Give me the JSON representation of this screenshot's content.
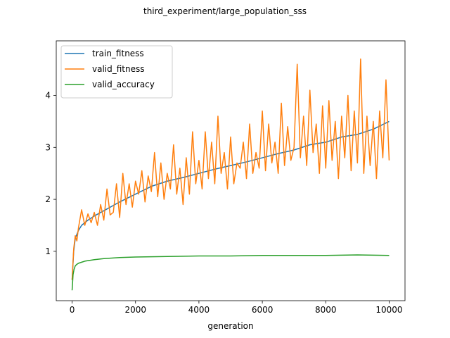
{
  "chart_data": {
    "type": "line",
    "title": "third_experiment/large_population_sss",
    "xlabel": "generation",
    "ylabel": "",
    "xlim": [
      -500,
      10500
    ],
    "ylim": [
      0.05,
      5.05
    ],
    "x_ticks": [
      0,
      2000,
      4000,
      6000,
      8000,
      10000
    ],
    "y_ticks": [
      1,
      2,
      3,
      4
    ],
    "grid": false,
    "legend_position": "upper-left",
    "series": [
      {
        "name": "train_fitness",
        "color": "#1f77b4",
        "x": [
          0,
          50,
          100,
          200,
          300,
          500,
          700,
          1000,
          1500,
          2000,
          2500,
          3000,
          3500,
          4000,
          4500,
          5000,
          5500,
          6000,
          6500,
          7000,
          7500,
          8000,
          8500,
          9000,
          9500,
          10000
        ],
        "y": [
          0.45,
          1.0,
          1.25,
          1.4,
          1.5,
          1.6,
          1.68,
          1.78,
          1.95,
          2.1,
          2.25,
          2.35,
          2.42,
          2.5,
          2.58,
          2.65,
          2.72,
          2.8,
          2.88,
          2.95,
          3.05,
          3.1,
          3.2,
          3.25,
          3.35,
          3.5
        ]
      },
      {
        "name": "valid_fitness",
        "color": "#ff7f0e",
        "x": [
          0,
          50,
          100,
          150,
          200,
          300,
          400,
          500,
          600,
          700,
          800,
          900,
          1000,
          1100,
          1200,
          1300,
          1400,
          1500,
          1600,
          1700,
          1800,
          1900,
          2000,
          2100,
          2200,
          2300,
          2400,
          2500,
          2600,
          2700,
          2800,
          2900,
          3000,
          3100,
          3200,
          3300,
          3400,
          3500,
          3600,
          3700,
          3800,
          3900,
          4000,
          4100,
          4200,
          4300,
          4400,
          4500,
          4600,
          4700,
          4800,
          4900,
          5000,
          5100,
          5200,
          5300,
          5400,
          5500,
          5600,
          5700,
          5800,
          5900,
          6000,
          6100,
          6200,
          6300,
          6400,
          6500,
          6600,
          6700,
          6800,
          6900,
          7000,
          7100,
          7200,
          7300,
          7400,
          7500,
          7600,
          7700,
          7800,
          7900,
          8000,
          8100,
          8200,
          8300,
          8400,
          8500,
          8600,
          8700,
          8800,
          8900,
          9000,
          9100,
          9200,
          9300,
          9400,
          9500,
          9600,
          9700,
          9800,
          9900,
          10000
        ],
        "y": [
          0.45,
          1.05,
          1.3,
          1.2,
          1.45,
          1.8,
          1.5,
          1.72,
          1.55,
          1.75,
          1.5,
          1.9,
          1.6,
          2.2,
          1.7,
          1.75,
          2.3,
          1.65,
          2.5,
          1.9,
          2.3,
          1.85,
          2.35,
          2.1,
          2.55,
          1.95,
          2.45,
          2.15,
          2.9,
          2.05,
          2.7,
          2.0,
          2.5,
          2.2,
          3.05,
          2.1,
          2.6,
          1.9,
          2.8,
          2.1,
          3.3,
          2.3,
          2.75,
          2.2,
          3.3,
          2.4,
          3.1,
          2.3,
          3.6,
          2.5,
          2.9,
          2.2,
          3.2,
          2.3,
          2.7,
          2.6,
          3.1,
          2.4,
          3.45,
          2.5,
          2.9,
          2.6,
          3.7,
          2.55,
          3.45,
          2.7,
          3.1,
          2.5,
          3.85,
          2.65,
          3.4,
          2.75,
          3.0,
          4.6,
          2.8,
          3.6,
          2.65,
          4.1,
          2.9,
          3.45,
          2.5,
          3.8,
          2.6,
          3.9,
          2.75,
          3.5,
          2.4,
          3.6,
          2.8,
          4.0,
          2.55,
          3.7,
          2.7,
          4.7,
          2.5,
          3.6,
          2.65,
          3.5,
          2.4,
          3.7,
          2.8,
          4.3,
          2.75
        ]
      },
      {
        "name": "valid_accuracy",
        "color": "#2ca02c",
        "x": [
          0,
          30,
          60,
          100,
          150,
          200,
          300,
          400,
          500,
          700,
          1000,
          1500,
          2000,
          3000,
          4000,
          5000,
          6000,
          7000,
          8000,
          9000,
          10000
        ],
        "y": [
          0.25,
          0.55,
          0.65,
          0.72,
          0.75,
          0.77,
          0.79,
          0.81,
          0.82,
          0.84,
          0.86,
          0.88,
          0.89,
          0.9,
          0.91,
          0.91,
          0.92,
          0.92,
          0.92,
          0.93,
          0.92
        ]
      }
    ]
  }
}
